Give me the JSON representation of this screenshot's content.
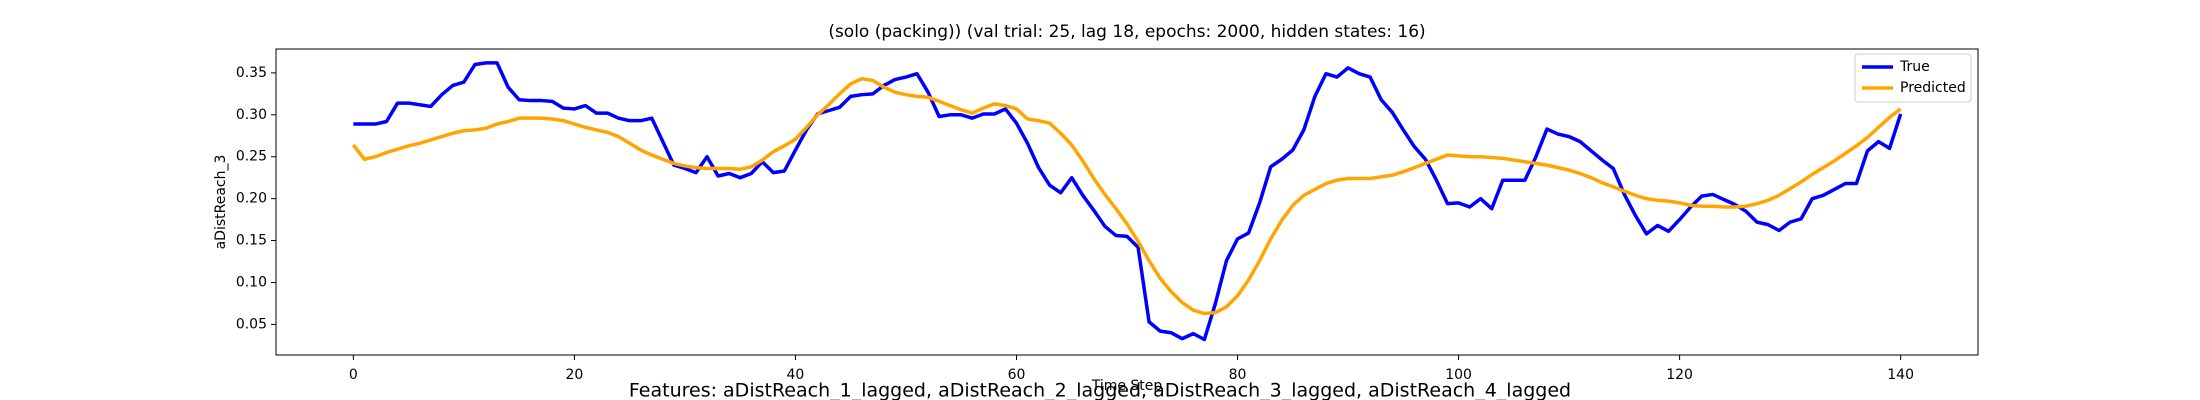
{
  "chart_data": {
    "type": "line",
    "title": "(solo (packing)) (val trial: 25, lag 18, epochs: 2000, hidden states: 16)",
    "xlabel": "Time Step",
    "ylabel": "aDistReach_3",
    "caption": "Features: aDistReach_1_lagged, aDistReach_2_lagged, aDistReach_3_lagged, aDistReach_4_lagged",
    "x": [
      0,
      1,
      2,
      3,
      4,
      5,
      6,
      7,
      8,
      9,
      10,
      11,
      12,
      13,
      14,
      15,
      16,
      17,
      18,
      19,
      20,
      21,
      22,
      23,
      24,
      25,
      26,
      27,
      28,
      29,
      30,
      31,
      32,
      33,
      34,
      35,
      36,
      37,
      38,
      39,
      40,
      41,
      42,
      43,
      44,
      45,
      46,
      47,
      48,
      49,
      50,
      51,
      52,
      53,
      54,
      55,
      56,
      57,
      58,
      59,
      60,
      61,
      62,
      63,
      64,
      65,
      66,
      67,
      68,
      69,
      70,
      71,
      72,
      73,
      74,
      75,
      76,
      77,
      78,
      79,
      80,
      81,
      82,
      83,
      84,
      85,
      86,
      87,
      88,
      89,
      90,
      91,
      92,
      93,
      94,
      95,
      96,
      97,
      98,
      99,
      100,
      101,
      102,
      103,
      104,
      105,
      106,
      107,
      108,
      109,
      110,
      111,
      112,
      113,
      114,
      115,
      116,
      117,
      118,
      119,
      120,
      121,
      122,
      123,
      124,
      125,
      126,
      127,
      128,
      129,
      130,
      131,
      132,
      133,
      134,
      135,
      136,
      137,
      138,
      139,
      140
    ],
    "series": [
      {
        "name": "True",
        "color": "#0000ff",
        "values": [
          0.289,
          0.289,
          0.289,
          0.292,
          0.314,
          0.314,
          0.312,
          0.31,
          0.324,
          0.335,
          0.339,
          0.36,
          0.362,
          0.362,
          0.333,
          0.318,
          0.317,
          0.317,
          0.316,
          0.308,
          0.307,
          0.311,
          0.302,
          0.302,
          0.296,
          0.293,
          0.293,
          0.296,
          0.268,
          0.24,
          0.236,
          0.231,
          0.25,
          0.227,
          0.23,
          0.225,
          0.23,
          0.244,
          0.231,
          0.233,
          0.258,
          0.282,
          0.301,
          0.305,
          0.309,
          0.322,
          0.324,
          0.325,
          0.335,
          0.342,
          0.345,
          0.349,
          0.327,
          0.298,
          0.3,
          0.3,
          0.296,
          0.301,
          0.301,
          0.307,
          0.29,
          0.266,
          0.237,
          0.216,
          0.207,
          0.225,
          0.204,
          0.186,
          0.167,
          0.156,
          0.155,
          0.142,
          0.053,
          0.042,
          0.04,
          0.033,
          0.039,
          0.032,
          0.075,
          0.126,
          0.152,
          0.159,
          0.195,
          0.238,
          0.247,
          0.258,
          0.282,
          0.322,
          0.349,
          0.345,
          0.356,
          0.349,
          0.345,
          0.318,
          0.303,
          0.282,
          0.262,
          0.247,
          0.222,
          0.194,
          0.195,
          0.19,
          0.2,
          0.188,
          0.222,
          0.222,
          0.222,
          0.25,
          0.283,
          0.277,
          0.274,
          0.268,
          0.257,
          0.246,
          0.236,
          0.205,
          0.18,
          0.158,
          0.168,
          0.161,
          0.175,
          0.19,
          0.203,
          0.205,
          0.199,
          0.193,
          0.185,
          0.172,
          0.169,
          0.162,
          0.172,
          0.176,
          0.2,
          0.204,
          0.211,
          0.218,
          0.218,
          0.257,
          0.268,
          0.26,
          0.301
        ]
      },
      {
        "name": "Predicted",
        "color": "#ffa500",
        "values": [
          0.264,
          0.247,
          0.25,
          0.255,
          0.259,
          0.263,
          0.266,
          0.27,
          0.274,
          0.278,
          0.281,
          0.282,
          0.284,
          0.289,
          0.292,
          0.296,
          0.296,
          0.296,
          0.295,
          0.293,
          0.289,
          0.285,
          0.282,
          0.279,
          0.274,
          0.266,
          0.258,
          0.252,
          0.247,
          0.242,
          0.239,
          0.237,
          0.236,
          0.236,
          0.236,
          0.235,
          0.238,
          0.246,
          0.256,
          0.263,
          0.271,
          0.285,
          0.3,
          0.312,
          0.325,
          0.337,
          0.343,
          0.341,
          0.333,
          0.327,
          0.324,
          0.322,
          0.321,
          0.316,
          0.311,
          0.306,
          0.302,
          0.308,
          0.313,
          0.311,
          0.307,
          0.295,
          0.293,
          0.29,
          0.278,
          0.264,
          0.245,
          0.224,
          0.205,
          0.188,
          0.17,
          0.149,
          0.126,
          0.105,
          0.089,
          0.076,
          0.067,
          0.063,
          0.064,
          0.071,
          0.084,
          0.103,
          0.126,
          0.152,
          0.174,
          0.192,
          0.204,
          0.211,
          0.218,
          0.222,
          0.224,
          0.224,
          0.224,
          0.226,
          0.228,
          0.232,
          0.237,
          0.242,
          0.247,
          0.252,
          0.251,
          0.25,
          0.25,
          0.249,
          0.248,
          0.246,
          0.244,
          0.242,
          0.24,
          0.237,
          0.234,
          0.23,
          0.225,
          0.219,
          0.214,
          0.209,
          0.204,
          0.2,
          0.198,
          0.197,
          0.195,
          0.192,
          0.191,
          0.191,
          0.19,
          0.19,
          0.191,
          0.194,
          0.198,
          0.204,
          0.212,
          0.22,
          0.229,
          0.237,
          0.245,
          0.254,
          0.263,
          0.273,
          0.285,
          0.297,
          0.307
        ]
      }
    ],
    "xlim": [
      -7,
      147
    ],
    "ylim": [
      0.0135,
      0.3785
    ],
    "xticks": [
      0,
      20,
      40,
      60,
      80,
      100,
      120,
      140
    ],
    "yticks": [
      0.05,
      {
        "value": 0.1,
        "label": "0.10"
      },
      0.15,
      {
        "value": 0.2,
        "label": "0.20"
      },
      0.25,
      {
        "value": 0.3,
        "label": "0.30"
      },
      0.35
    ],
    "legend": "upper right"
  }
}
